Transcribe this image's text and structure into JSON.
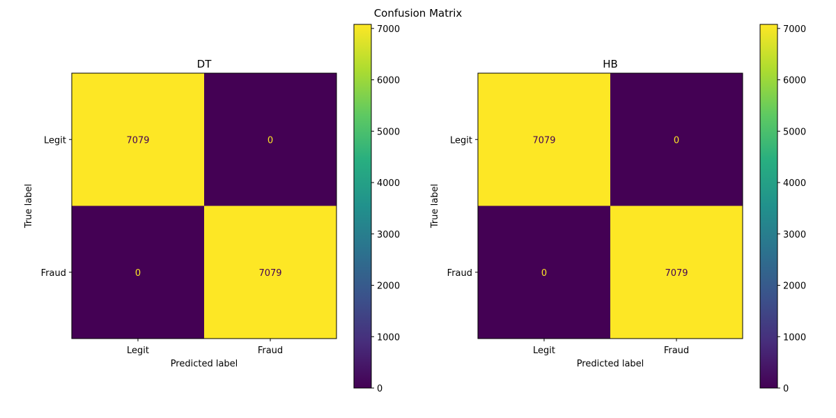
{
  "figure": {
    "title": "Confusion Matrix"
  },
  "chart_data": [
    {
      "type": "heatmap",
      "title": "DT",
      "xlabel": "Predicted label",
      "ylabel": "True label",
      "x_categories": [
        "Legit",
        "Fraud"
      ],
      "y_categories": [
        "Legit",
        "Fraud"
      ],
      "values": [
        [
          7079,
          0
        ],
        [
          0,
          7079
        ]
      ],
      "colormap": "viridis",
      "colorbar": {
        "range": [
          0,
          7079
        ],
        "ticks": [
          0,
          1000,
          2000,
          3000,
          4000,
          5000,
          6000,
          7000
        ]
      },
      "colors": {
        "low": "#440154",
        "high": "#fde725",
        "text_on_dark": "#fde725",
        "text_on_light": "#440154"
      }
    },
    {
      "type": "heatmap",
      "title": "HB",
      "xlabel": "Predicted label",
      "ylabel": "True label",
      "x_categories": [
        "Legit",
        "Fraud"
      ],
      "y_categories": [
        "Legit",
        "Fraud"
      ],
      "values": [
        [
          7079,
          0
        ],
        [
          0,
          7079
        ]
      ],
      "colormap": "viridis",
      "colorbar": {
        "range": [
          0,
          7079
        ],
        "ticks": [
          0,
          1000,
          2000,
          3000,
          4000,
          5000,
          6000,
          7000
        ]
      },
      "colors": {
        "low": "#440154",
        "high": "#fde725",
        "text_on_dark": "#fde725",
        "text_on_light": "#440154"
      }
    }
  ]
}
